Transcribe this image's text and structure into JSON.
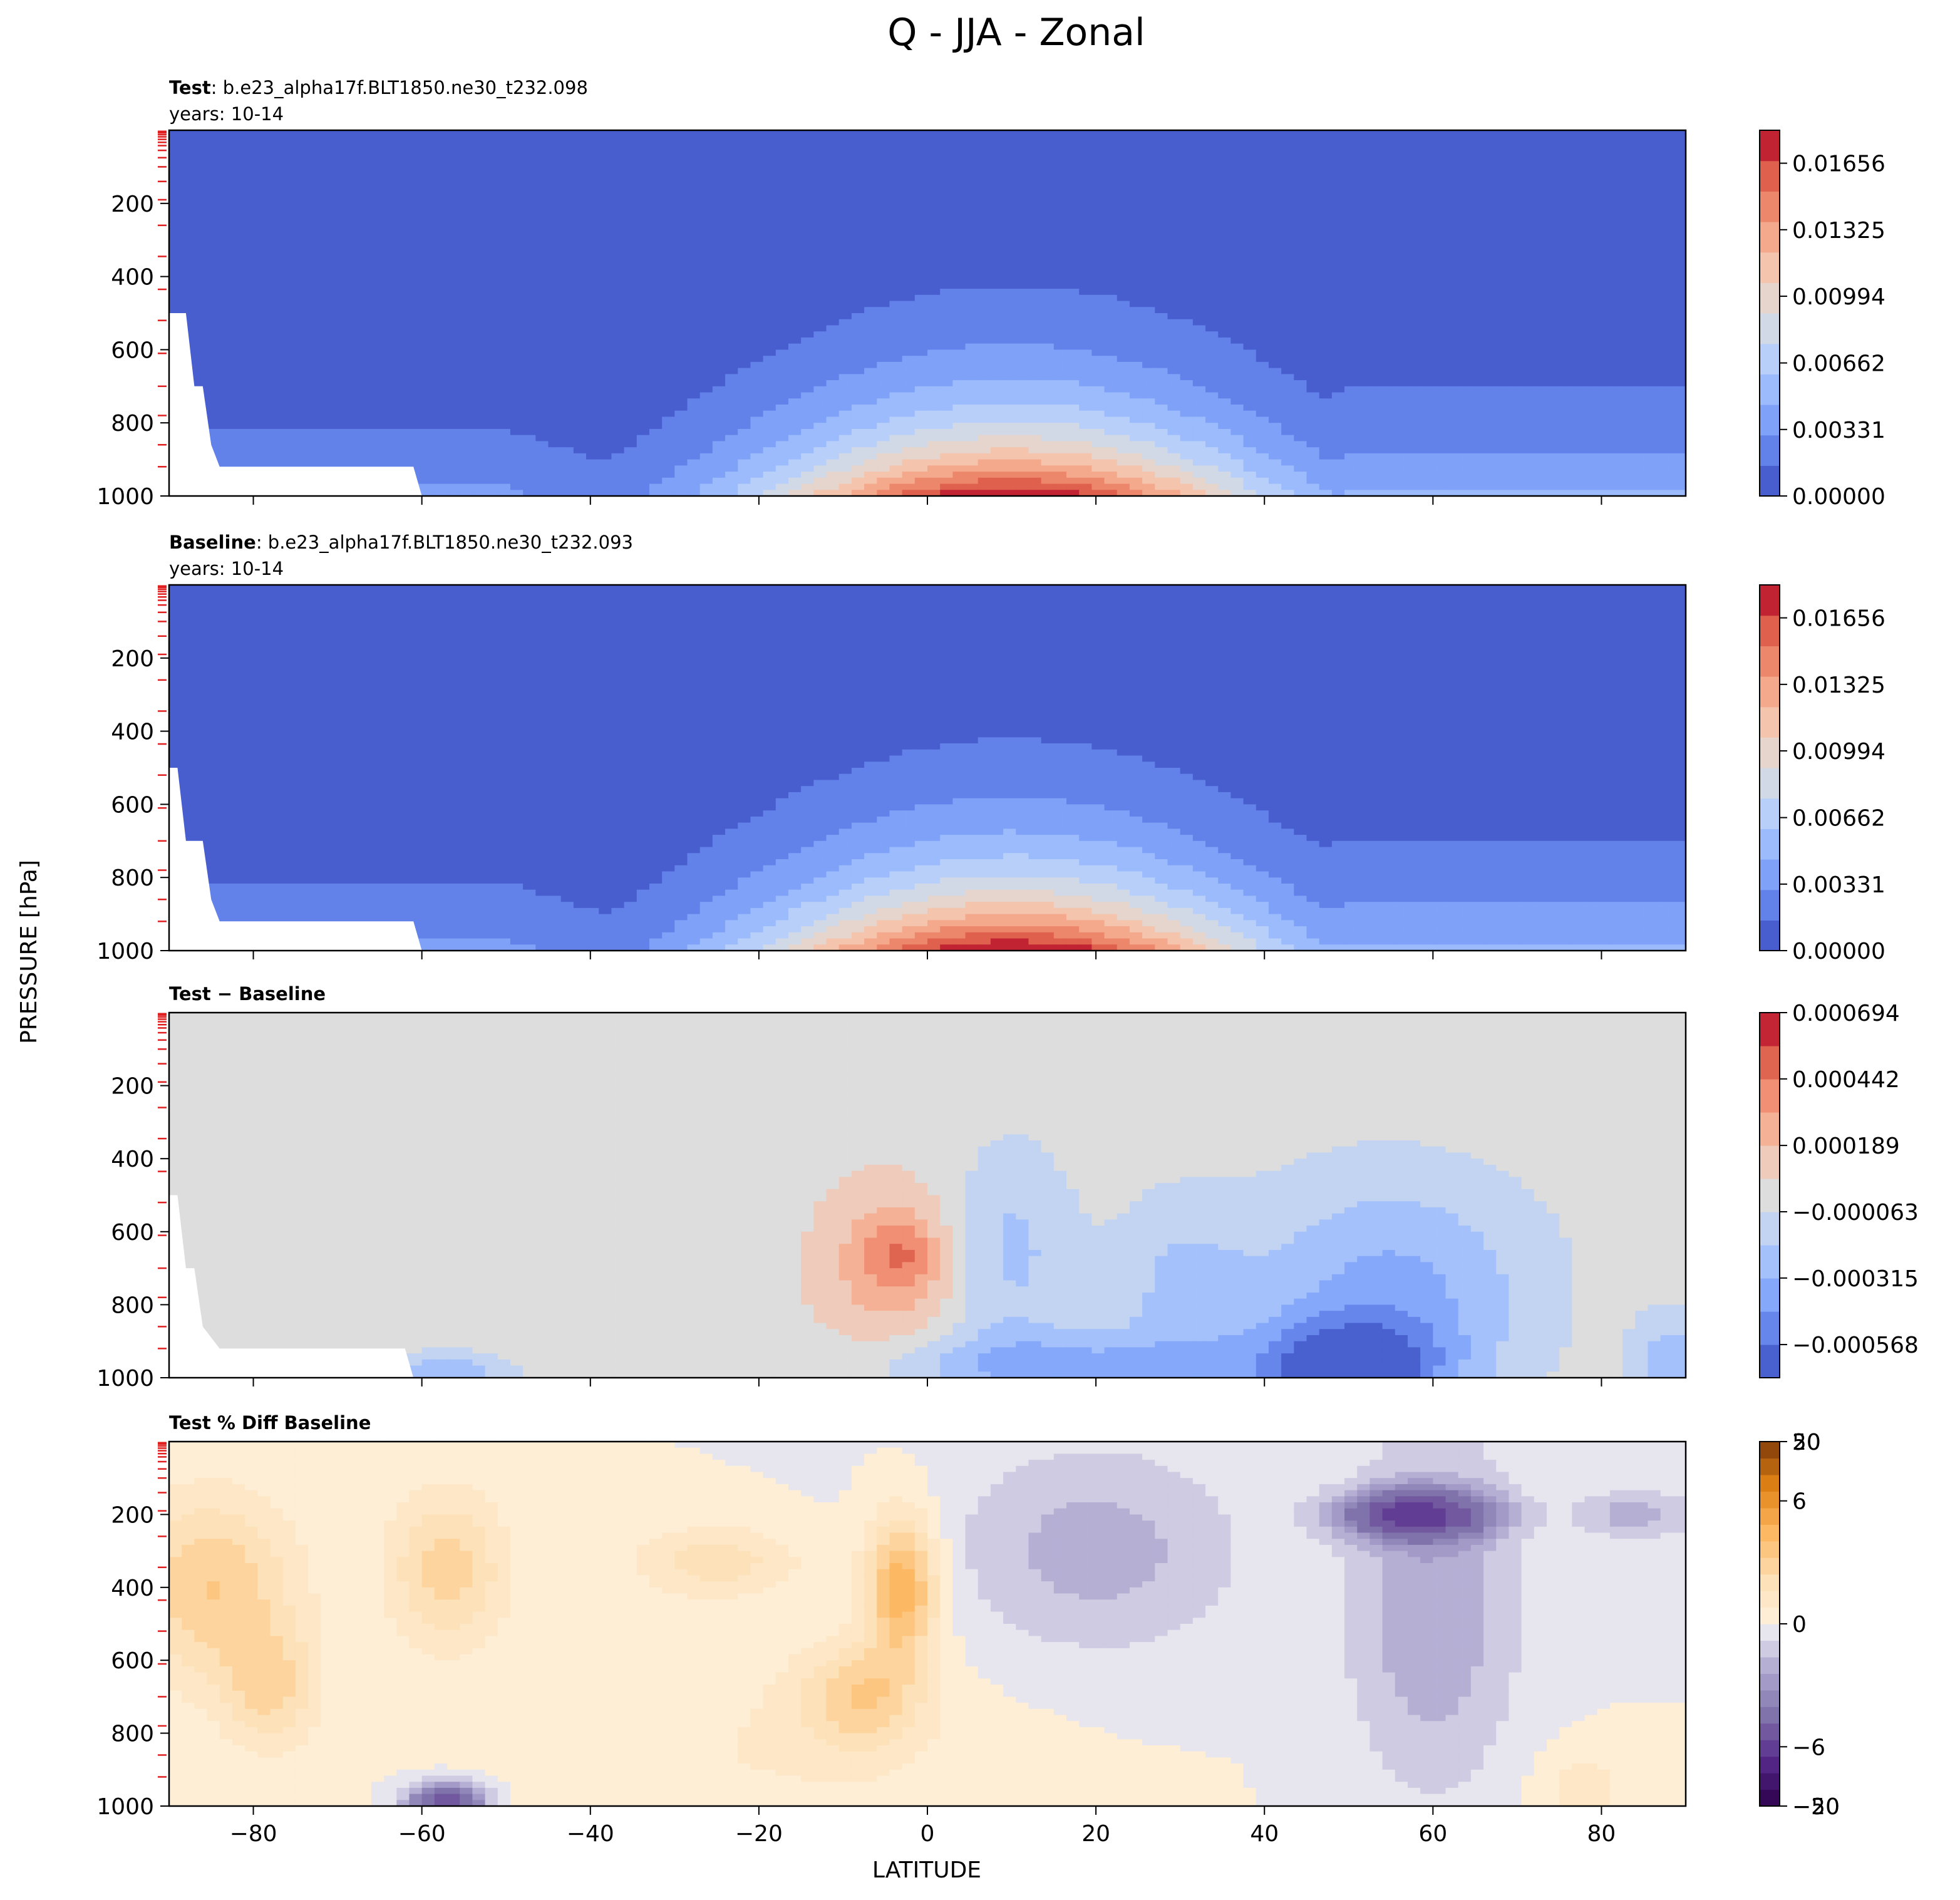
{
  "figure": {
    "title": "Q - JJA - Zonal",
    "ylabel": "PRESSURE [hPa]",
    "xlabel": "LATITUDE"
  },
  "chart_data": [
    {
      "type": "heatmap",
      "name": "test",
      "header_bold": "Test",
      "header_text": ": b.e23_alpha17f.BLT1850.ne30_t232.098",
      "header_years": "years: 10-14",
      "xlim": [
        -90,
        90
      ],
      "ylim": [
        1000,
        0
      ],
      "x_ticks": [
        -80,
        -60,
        -40,
        -20,
        0,
        20,
        40,
        60,
        80
      ],
      "x_tick_labels": [],
      "y_ticks": [
        200,
        400,
        600,
        800,
        1000
      ],
      "y_tick_labels": [
        "200",
        "400",
        "600",
        "800",
        "1000"
      ],
      "colormap": "coolwarm",
      "colorbar_ticks": [
        0.0,
        0.00331,
        0.00662,
        0.00994,
        0.01325,
        0.01656
      ],
      "colorbar_tick_labels": [
        "0.00000",
        "0.00331",
        "0.00662",
        "0.00994",
        "0.01325",
        "0.01656"
      ],
      "levels": 12,
      "colorbar_max": 0.0182,
      "mask_outline": [
        [
          -90,
          500
        ],
        [
          -88,
          500
        ],
        [
          -87,
          700
        ],
        [
          -86,
          700
        ],
        [
          -85,
          860
        ],
        [
          -84,
          920
        ],
        [
          -61,
          920
        ],
        [
          -60,
          1000
        ],
        [
          -90,
          1000
        ]
      ],
      "field_model": {
        "kind": "moisture",
        "peak": 0.0178,
        "lat0": 10,
        "sigma_lat": 22,
        "skew_south": 1.0,
        "scale_p": 230,
        "tail_north": 0.0042,
        "tail_south": 0.0028
      }
    },
    {
      "type": "heatmap",
      "name": "baseline",
      "header_bold": "Baseline",
      "header_text": ": b.e23_alpha17f.BLT1850.ne30_t232.093",
      "header_years": "years: 10-14",
      "xlim": [
        -90,
        90
      ],
      "ylim": [
        1000,
        0
      ],
      "x_ticks": [
        -80,
        -60,
        -40,
        -20,
        0,
        20,
        40,
        60,
        80
      ],
      "x_tick_labels": [],
      "y_ticks": [
        200,
        400,
        600,
        800,
        1000
      ],
      "y_tick_labels": [
        "200",
        "400",
        "600",
        "800",
        "1000"
      ],
      "colormap": "coolwarm",
      "colorbar_ticks": [
        0.0,
        0.00331,
        0.00662,
        0.00994,
        0.01325,
        0.01656
      ],
      "colorbar_tick_labels": [
        "0.00000",
        "0.00331",
        "0.00662",
        "0.00994",
        "0.01325",
        "0.01656"
      ],
      "levels": 12,
      "colorbar_max": 0.0182,
      "mask_outline": [
        [
          -90,
          500
        ],
        [
          -89,
          500
        ],
        [
          -88,
          700
        ],
        [
          -86,
          700
        ],
        [
          -85,
          860
        ],
        [
          -84,
          920
        ],
        [
          -61,
          920
        ],
        [
          -60,
          1000
        ],
        [
          -90,
          1000
        ]
      ],
      "field_model": {
        "kind": "moisture",
        "peak": 0.0181,
        "lat0": 10,
        "sigma_lat": 22,
        "skew_south": 1.0,
        "scale_p": 230,
        "tail_north": 0.0044,
        "tail_south": 0.0029
      }
    },
    {
      "type": "heatmap",
      "name": "difference",
      "header_bold": "Test − Baseline",
      "header_text": "",
      "header_years": "",
      "xlim": [
        -90,
        90
      ],
      "ylim": [
        1000,
        0
      ],
      "x_ticks": [
        -80,
        -60,
        -40,
        -20,
        0,
        20,
        40,
        60,
        80
      ],
      "x_tick_labels": [],
      "y_ticks": [
        200,
        400,
        600,
        800,
        1000
      ],
      "y_tick_labels": [
        "200",
        "400",
        "600",
        "800",
        "1000"
      ],
      "colormap": "coolwarm",
      "colorbar_ticks": [
        0.000694,
        0.000442,
        0.000189,
        -6.3e-05,
        -0.000315,
        -0.000568
      ],
      "colorbar_tick_labels": [
        "0.000694",
        "0.000442",
        "0.000189",
        "−0.000063",
        "−0.000315",
        "−0.000568"
      ],
      "levels": 11,
      "colorbar_range": [
        -0.000694,
        0.000694
      ],
      "mask_outline": [
        [
          -90,
          500
        ],
        [
          -89,
          500
        ],
        [
          -88,
          700
        ],
        [
          -87,
          700
        ],
        [
          -86,
          860
        ],
        [
          -84,
          920
        ],
        [
          -62,
          920
        ],
        [
          -61,
          1000
        ],
        [
          -90,
          1000
        ]
      ],
      "field_model": {
        "kind": "blobs",
        "background": 0.0,
        "blobs": [
          {
            "lat": -5,
            "p": 700,
            "slat": 6,
            "sp": 170,
            "amp": 0.00025
          },
          {
            "lat": -3,
            "p": 660,
            "slat": 3,
            "sp": 70,
            "amp": 0.00025
          },
          {
            "lat": 10,
            "p": 650,
            "slat": 5,
            "sp": 200,
            "amp": -0.00022
          },
          {
            "lat": 15,
            "p": 970,
            "slat": 14,
            "sp": 70,
            "amp": -0.00035
          },
          {
            "lat": 30,
            "p": 760,
            "slat": 6,
            "sp": 180,
            "amp": -0.0002
          },
          {
            "lat": 55,
            "p": 760,
            "slat": 12,
            "sp": 220,
            "amp": -0.00035
          },
          {
            "lat": 50,
            "p": 980,
            "slat": 8,
            "sp": 100,
            "amp": -0.0006
          },
          {
            "lat": 88,
            "p": 950,
            "slat": 3,
            "sp": 90,
            "amp": -0.00025
          },
          {
            "lat": -57,
            "p": 990,
            "slat": 5,
            "sp": 40,
            "amp": -0.0003
          }
        ]
      }
    },
    {
      "type": "heatmap",
      "name": "percent_difference",
      "header_bold": "Test % Diff Baseline",
      "header_text": "",
      "header_years": "",
      "xlim": [
        -90,
        90
      ],
      "ylim": [
        1000,
        0
      ],
      "x_ticks": [
        -80,
        -60,
        -40,
        -20,
        0,
        20,
        40,
        60,
        80
      ],
      "x_tick_labels": [
        "−80",
        "−60",
        "−40",
        "−20",
        "0",
        "20",
        "40",
        "60",
        "80"
      ],
      "y_ticks": [
        200,
        400,
        600,
        800,
        1000
      ],
      "y_tick_labels": [
        "200",
        "400",
        "600",
        "800",
        "1000"
      ],
      "colormap": "PuOr_r",
      "colorbar_ticks": [
        50,
        20,
        6,
        0,
        -6,
        -20,
        -50
      ],
      "colorbar_tick_labels": [
        "50",
        "20",
        "6",
        "0",
        "−6",
        "−20",
        "−50"
      ],
      "colorbar_range": [
        -100,
        100
      ],
      "field_model": {
        "kind": "blobs",
        "background": 0.0,
        "blobs": [
          {
            "lat": -85,
            "p": 400,
            "slat": 7,
            "sp": 180,
            "amp": 8
          },
          {
            "lat": -78,
            "p": 680,
            "slat": 4,
            "sp": 120,
            "amp": 6
          },
          {
            "lat": -57,
            "p": 350,
            "slat": 5,
            "sp": 150,
            "amp": 7
          },
          {
            "lat": -25,
            "p": 330,
            "slat": 7,
            "sp": 70,
            "amp": 5
          },
          {
            "lat": -3,
            "p": 400,
            "slat": 3,
            "sp": 140,
            "amp": 12
          },
          {
            "lat": -8,
            "p": 700,
            "slat": 5,
            "sp": 100,
            "amp": 7
          },
          {
            "lat": 20,
            "p": 300,
            "slat": 12,
            "sp": 200,
            "amp": -5
          },
          {
            "lat": 58,
            "p": 200,
            "slat": 6,
            "sp": 45,
            "amp": -20
          },
          {
            "lat": 60,
            "p": 450,
            "slat": 7,
            "sp": 350,
            "amp": -6
          },
          {
            "lat": -57,
            "p": 990,
            "slat": 3,
            "sp": 35,
            "amp": -20
          },
          {
            "lat": 84,
            "p": 200,
            "slat": 5,
            "sp": 50,
            "amp": -5
          },
          {
            "lat": 78,
            "p": 950,
            "slat": 4,
            "sp": 80,
            "amp": 3
          },
          {
            "lat": -20,
            "p": 850,
            "slat": 20,
            "sp": 200,
            "amp": 2
          }
        ]
      }
    }
  ]
}
